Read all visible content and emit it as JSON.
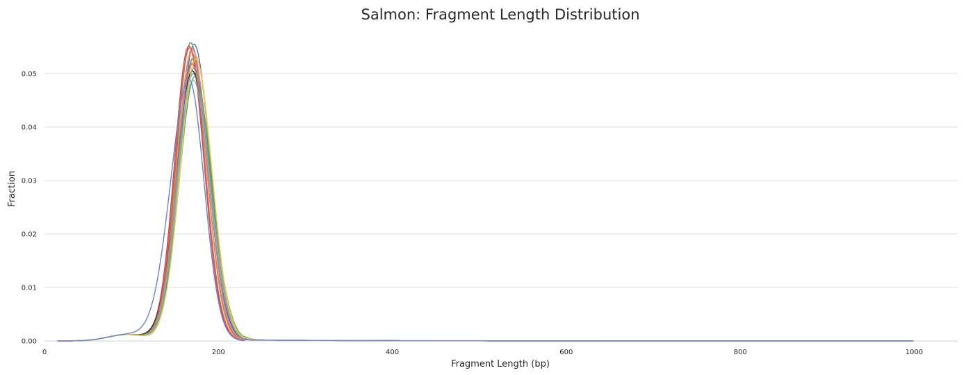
{
  "chart_data": {
    "type": "line",
    "title": "Salmon: Fragment Length Distribution",
    "xlabel": "Fragment Length (bp)",
    "ylabel": "Fraction",
    "xlim": [
      0,
      1050
    ],
    "ylim": [
      0,
      0.057
    ],
    "xticks": [
      0,
      200,
      400,
      600,
      800,
      1000
    ],
    "xtick_labels": [
      "0",
      "200",
      "400",
      "600",
      "800",
      "1000"
    ],
    "yticks": [
      0,
      0.01,
      0.02,
      0.03,
      0.04,
      0.05
    ],
    "ytick_labels": [
      "0.00",
      "0.01",
      "0.02",
      "0.03",
      "0.04",
      "0.05"
    ],
    "grid": "horizontal",
    "legend": "none",
    "x_max_bp": 1000,
    "series": [
      {
        "color": "#4c72b0",
        "peak_x": 172,
        "peak_y": 0.0555,
        "sigma_left": 17,
        "sigma_right": 18.5
      },
      {
        "color": "#dd8452",
        "peak_x": 170,
        "peak_y": 0.0548,
        "sigma_left": 17,
        "sigma_right": 18
      },
      {
        "color": "#55a868",
        "peak_x": 168,
        "peak_y": 0.0558,
        "sigma_left": 16.5,
        "sigma_right": 18
      },
      {
        "color": "#c44e52",
        "peak_x": 166,
        "peak_y": 0.0552,
        "sigma_left": 16.5,
        "sigma_right": 17.5
      },
      {
        "color": "#8172b3",
        "peak_x": 171,
        "peak_y": 0.053,
        "sigma_left": 17.5,
        "sigma_right": 18.5
      },
      {
        "color": "#937860",
        "peak_x": 169,
        "peak_y": 0.052,
        "sigma_left": 17,
        "sigma_right": 18
      },
      {
        "color": "#da8bc3",
        "peak_x": 170,
        "peak_y": 0.0545,
        "sigma_left": 17,
        "sigma_right": 18
      },
      {
        "color": "#8c8c8c",
        "peak_x": 172,
        "peak_y": 0.051,
        "sigma_left": 18,
        "sigma_right": 19
      },
      {
        "color": "#ccb974",
        "peak_x": 173,
        "peak_y": 0.0535,
        "sigma_left": 17.5,
        "sigma_right": 18.5
      },
      {
        "color": "#64b5cd",
        "peak_x": 171,
        "peak_y": 0.05,
        "sigma_left": 18,
        "sigma_right": 19
      },
      {
        "color": "#2f2f2f",
        "peak_x": 170,
        "peak_y": 0.0505,
        "sigma_left": 18.5,
        "sigma_right": 19
      },
      {
        "color": "#f28e2b",
        "peak_x": 169,
        "peak_y": 0.054,
        "sigma_left": 17,
        "sigma_right": 17.5
      },
      {
        "color": "#e15759",
        "peak_x": 167,
        "peak_y": 0.0549,
        "sigma_left": 16.5,
        "sigma_right": 17.5
      },
      {
        "color": "#59a14f",
        "peak_x": 173,
        "peak_y": 0.0495,
        "sigma_left": 18,
        "sigma_right": 19.5
      },
      {
        "color": "#b07aa1",
        "peak_x": 170,
        "peak_y": 0.0518,
        "sigma_left": 17.5,
        "sigma_right": 18.5
      },
      {
        "color": "#76b7b2",
        "peak_x": 171,
        "peak_y": 0.0488,
        "sigma_left": 18,
        "sigma_right": 19
      },
      {
        "color": "#edc948",
        "peak_x": 174,
        "peak_y": 0.0528,
        "sigma_left": 18,
        "sigma_right": 18.5
      },
      {
        "color": "#6a7fd0",
        "peak_x": 166,
        "peak_y": 0.049,
        "sigma_left": 21,
        "sigma_right": 17.5
      }
    ]
  }
}
